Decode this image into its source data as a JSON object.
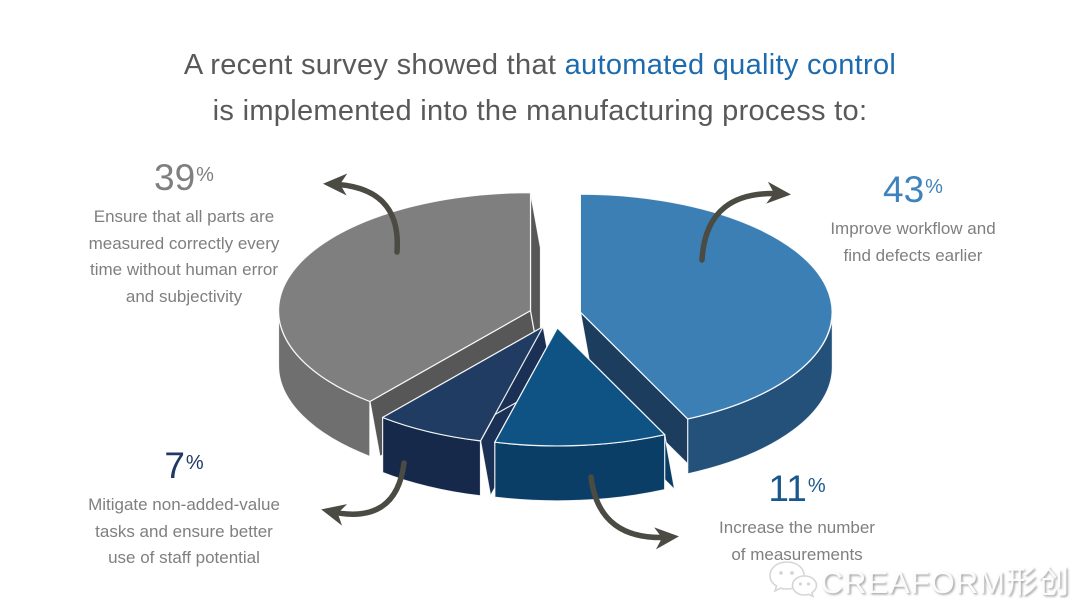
{
  "title": {
    "line1_prefix": "A recent survey showed that ",
    "line1_highlight": "automated quality control",
    "line2": "is implemented into the manufacturing process to:"
  },
  "percent_sign": "%",
  "callouts": [
    {
      "percent": "39",
      "percent_color": "#7F7F7F",
      "text": "Ensure that all parts are\nmeasured correctly every\ntime without human error\nand subjectivity"
    },
    {
      "percent": "43",
      "percent_color": "#3F83BD",
      "text": "Improve workflow and\nfind defects earlier"
    },
    {
      "percent": "7",
      "percent_color": "#1F3864",
      "text": "Mitigate non-added-value\ntasks and ensure better\nuse of staff potential"
    },
    {
      "percent": "11",
      "percent_color": "#19588C",
      "text": "Increase the number\nof measurements"
    }
  ],
  "chart_data": {
    "type": "pie",
    "style": "3d-exploded",
    "title": "A recent survey showed that automated quality control is implemented into the manufacturing process to:",
    "unit": "%",
    "start_angle_deg": -90,
    "direction": "clockwise",
    "legend": "none",
    "slices": [
      {
        "label": "Improve workflow and find defects earlier",
        "value": 43,
        "color": "#3B7FB5",
        "side_color": "#24517A",
        "cut_color": "#1C3D5E"
      },
      {
        "label": "Increase the number of measurements",
        "value": 11,
        "color": "#0F5385",
        "side_color": "#0A3E66",
        "cut_color": "#0A3E66"
      },
      {
        "label": "Mitigate non-added-value tasks and ensure better use of staff potential",
        "value": 7,
        "color": "#203C63",
        "side_color": "#16294A",
        "cut_color": "#1B3055"
      },
      {
        "label": "Ensure that all parts are measured correctly every time without human error and subjectivity",
        "value": 39,
        "color": "#7F7F7F",
        "side_color": "#6F6F6F",
        "cut_color": "#575757"
      }
    ]
  },
  "style": {
    "title_gray": "#595959",
    "highlight_blue": "#1C6BAE",
    "text_gray": "#7F7F7F",
    "arrow_color": "#4B4A43"
  },
  "watermark": {
    "text": "CREAFORM形创",
    "icon": "wechat-icon"
  }
}
